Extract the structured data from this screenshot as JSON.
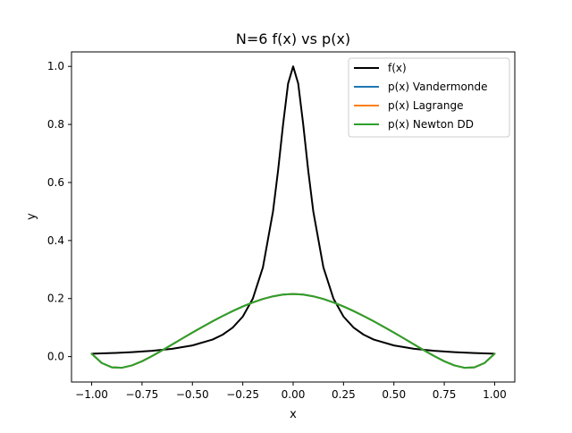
{
  "chart_data": {
    "type": "line",
    "title": "N=6 f(x) vs p(x)",
    "xlabel": "x",
    "ylabel": "y",
    "xlim": [
      -1.1,
      1.1
    ],
    "ylim": [
      -0.0875,
      1.05
    ],
    "xticks": [
      -1.0,
      -0.75,
      -0.5,
      -0.25,
      0.0,
      0.25,
      0.5,
      0.75,
      1.0
    ],
    "xtick_labels": [
      "−1.00",
      "−0.75",
      "−0.50",
      "−0.25",
      "0.00",
      "0.25",
      "0.50",
      "0.75",
      "1.00"
    ],
    "yticks": [
      0.0,
      0.2,
      0.4,
      0.6,
      0.8,
      1.0
    ],
    "ytick_labels": [
      "0.0",
      "0.2",
      "0.4",
      "0.6",
      "0.8",
      "1.0"
    ],
    "grid": false,
    "legend_position": "top-right",
    "series": [
      {
        "name": "f(x)",
        "color": "#000000",
        "x": [
          -1.0,
          -0.9,
          -0.8,
          -0.7,
          -0.6,
          -0.5,
          -0.4,
          -0.35,
          -0.3,
          -0.25,
          -0.2,
          -0.15,
          -0.1,
          -0.075,
          -0.05,
          -0.025,
          0.0,
          0.025,
          0.05,
          0.075,
          0.1,
          0.15,
          0.2,
          0.25,
          0.3,
          0.35,
          0.4,
          0.5,
          0.6,
          0.7,
          0.8,
          0.9,
          1.0
        ],
        "y": [
          0.0099,
          0.0122,
          0.0154,
          0.02,
          0.027,
          0.0385,
          0.0588,
          0.0755,
          0.1,
          0.1379,
          0.2,
          0.3077,
          0.5,
          0.64,
          0.8,
          0.9412,
          1.0,
          0.9412,
          0.8,
          0.64,
          0.5,
          0.3077,
          0.2,
          0.1379,
          0.1,
          0.0755,
          0.0588,
          0.0385,
          0.027,
          0.02,
          0.0154,
          0.0122,
          0.0099
        ]
      },
      {
        "name": "p(x) Vandermonde",
        "color": "#1f77b4",
        "x": [
          -1.0,
          -0.95,
          -0.9,
          -0.85,
          -0.8,
          -0.75,
          -0.7,
          -0.65,
          -0.6,
          -0.55,
          -0.5,
          -0.45,
          -0.4,
          -0.35,
          -0.3,
          -0.25,
          -0.2,
          -0.15,
          -0.1,
          -0.05,
          0.0,
          0.05,
          0.1,
          0.15,
          0.2,
          0.25,
          0.3,
          0.35,
          0.4,
          0.45,
          0.5,
          0.55,
          0.6,
          0.65,
          0.7,
          0.75,
          0.8,
          0.85,
          0.9,
          0.95,
          1.0
        ],
        "y": [
          0.0099,
          -0.022,
          -0.0369,
          -0.0384,
          -0.0303,
          -0.016,
          0.0018,
          0.0215,
          0.042,
          0.0626,
          0.0829,
          0.1026,
          0.1217,
          0.1399,
          0.157,
          0.1727,
          0.1867,
          0.1986,
          0.2078,
          0.2137,
          0.2157,
          0.2137,
          0.2078,
          0.1986,
          0.1867,
          0.1727,
          0.157,
          0.1399,
          0.1217,
          0.1026,
          0.0829,
          0.0626,
          0.042,
          0.0215,
          0.0018,
          -0.016,
          -0.0303,
          -0.0384,
          -0.0369,
          -0.022,
          0.0099
        ]
      },
      {
        "name": "p(x) Lagrange",
        "color": "#ff7f0e",
        "x": [
          -1.0,
          -0.95,
          -0.9,
          -0.85,
          -0.8,
          -0.75,
          -0.7,
          -0.65,
          -0.6,
          -0.55,
          -0.5,
          -0.45,
          -0.4,
          -0.35,
          -0.3,
          -0.25,
          -0.2,
          -0.15,
          -0.1,
          -0.05,
          0.0,
          0.05,
          0.1,
          0.15,
          0.2,
          0.25,
          0.3,
          0.35,
          0.4,
          0.45,
          0.5,
          0.55,
          0.6,
          0.65,
          0.7,
          0.75,
          0.8,
          0.85,
          0.9,
          0.95,
          1.0
        ],
        "y": [
          0.0099,
          -0.022,
          -0.0369,
          -0.0384,
          -0.0303,
          -0.016,
          0.0018,
          0.0215,
          0.042,
          0.0626,
          0.0829,
          0.1026,
          0.1217,
          0.1399,
          0.157,
          0.1727,
          0.1867,
          0.1986,
          0.2078,
          0.2137,
          0.2157,
          0.2137,
          0.2078,
          0.1986,
          0.1867,
          0.1727,
          0.157,
          0.1399,
          0.1217,
          0.1026,
          0.0829,
          0.0626,
          0.042,
          0.0215,
          0.0018,
          -0.016,
          -0.0303,
          -0.0384,
          -0.0369,
          -0.022,
          0.0099
        ]
      },
      {
        "name": "p(x) Newton DD",
        "color": "#2ca02c",
        "x": [
          -1.0,
          -0.95,
          -0.9,
          -0.85,
          -0.8,
          -0.75,
          -0.7,
          -0.65,
          -0.6,
          -0.55,
          -0.5,
          -0.45,
          -0.4,
          -0.35,
          -0.3,
          -0.25,
          -0.2,
          -0.15,
          -0.1,
          -0.05,
          0.0,
          0.05,
          0.1,
          0.15,
          0.2,
          0.25,
          0.3,
          0.35,
          0.4,
          0.45,
          0.5,
          0.55,
          0.6,
          0.65,
          0.7,
          0.75,
          0.8,
          0.85,
          0.9,
          0.95,
          1.0
        ],
        "y": [
          0.0099,
          -0.022,
          -0.0369,
          -0.0384,
          -0.0303,
          -0.016,
          0.0018,
          0.0215,
          0.042,
          0.0626,
          0.0829,
          0.1026,
          0.1217,
          0.1399,
          0.157,
          0.1727,
          0.1867,
          0.1986,
          0.2078,
          0.2137,
          0.2157,
          0.2137,
          0.2078,
          0.1986,
          0.1867,
          0.1727,
          0.157,
          0.1399,
          0.1217,
          0.1026,
          0.0829,
          0.0626,
          0.042,
          0.0215,
          0.0018,
          -0.016,
          -0.0303,
          -0.0384,
          -0.0369,
          -0.022,
          0.0099
        ]
      }
    ]
  }
}
